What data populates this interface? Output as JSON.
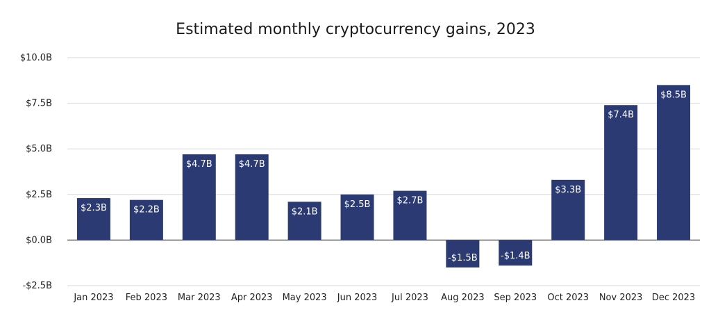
{
  "chart_data": {
    "type": "bar",
    "title": "Estimated monthly cryptocurrency gains, 2023",
    "xlabel": "",
    "ylabel": "",
    "categories": [
      "Jan 2023",
      "Feb 2023",
      "Mar 2023",
      "Apr 2023",
      "May 2023",
      "Jun 2023",
      "Jul 2023",
      "Aug 2023",
      "Sep 2023",
      "Oct 2023",
      "Nov 2023",
      "Dec 2023"
    ],
    "values": [
      2.3,
      2.2,
      4.7,
      4.7,
      2.1,
      2.5,
      2.7,
      -1.5,
      -1.4,
      3.3,
      7.4,
      8.5
    ],
    "data_labels": [
      "$2.3B",
      "$2.2B",
      "$4.7B",
      "$4.7B",
      "$2.1B",
      "$2.5B",
      "$2.7B",
      "-$1.5B",
      "-$1.4B",
      "$3.3B",
      "$7.4B",
      "$8.5B"
    ],
    "ylim": [
      -2.5,
      10.0
    ],
    "yticks": [
      10.0,
      7.5,
      5.0,
      2.5,
      0.0,
      -2.5
    ],
    "ytick_labels": [
      "$10.0B",
      "$7.5B",
      "$5.0B",
      "$2.5B",
      "$0.0B",
      "-$2.5B"
    ],
    "grid": true,
    "legend": "none",
    "bar_color": "#2b3a73",
    "grid_color": "#d9d9d9",
    "axis_color": "#555555"
  }
}
